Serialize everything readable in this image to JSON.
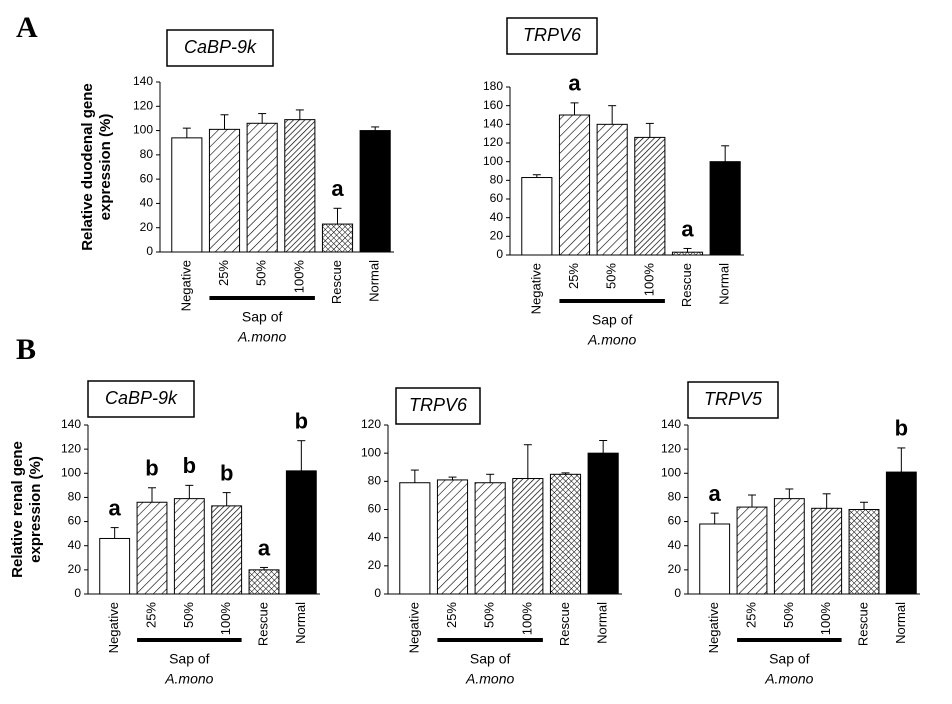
{
  "panel_labels": [
    "A",
    "B"
  ],
  "chart_data": [
    {
      "type": "bar",
      "title": "CaBP-9k",
      "y_label": [
        "Relative duodenal gene",
        "expression (%)"
      ],
      "categories": [
        "Negative",
        "25%",
        "50%",
        "100%",
        "Rescue",
        "Normal"
      ],
      "values": [
        94,
        101,
        106,
        109,
        23,
        100
      ],
      "errors": [
        8,
        12,
        8,
        8,
        13,
        3
      ],
      "annotations": [
        null,
        null,
        null,
        null,
        "a",
        null
      ],
      "group_label": [
        "Sap of",
        "A.mono"
      ],
      "ylim": [
        0,
        140
      ],
      "yticks": [
        0,
        20,
        40,
        60,
        80,
        100,
        120,
        140
      ]
    },
    {
      "type": "bar",
      "title": "TRPV6",
      "categories": [
        "Negative",
        "25%",
        "50%",
        "100%",
        "Rescue",
        "Normal"
      ],
      "values": [
        83,
        150,
        140,
        126,
        3,
        100
      ],
      "errors": [
        3,
        13,
        20,
        15,
        4,
        17
      ],
      "annotations": [
        null,
        "a",
        null,
        null,
        "a",
        null
      ],
      "group_label": [
        "Sap of",
        "A.mono"
      ],
      "ylim": [
        0,
        180
      ],
      "yticks": [
        0,
        20,
        40,
        60,
        80,
        100,
        120,
        140,
        160,
        180
      ]
    },
    {
      "type": "bar",
      "title": "CaBP-9k",
      "y_label": [
        "Relative renal gene",
        "expression (%)"
      ],
      "categories": [
        "Negative",
        "25%",
        "50%",
        "100%",
        "Rescue",
        "Normal"
      ],
      "values": [
        46,
        76,
        79,
        73,
        20,
        102
      ],
      "errors": [
        9,
        12,
        11,
        11,
        2,
        25
      ],
      "annotations": [
        "a",
        "b",
        "b",
        "b",
        "a",
        "b"
      ],
      "group_label": [
        "Sap of",
        "A.mono"
      ],
      "ylim": [
        0,
        140
      ],
      "yticks": [
        0,
        20,
        40,
        60,
        80,
        100,
        120,
        140
      ]
    },
    {
      "type": "bar",
      "title": "TRPV6",
      "categories": [
        "Negative",
        "25%",
        "50%",
        "100%",
        "Rescue",
        "Normal"
      ],
      "values": [
        79,
        81,
        79,
        82,
        85,
        100
      ],
      "errors": [
        9,
        2,
        6,
        24,
        1,
        9
      ],
      "annotations": [
        null,
        null,
        null,
        null,
        null,
        null
      ],
      "group_label": [
        "Sap of",
        "A.mono"
      ],
      "ylim": [
        0,
        120
      ],
      "yticks": [
        0,
        20,
        40,
        60,
        80,
        100,
        120
      ]
    },
    {
      "type": "bar",
      "title": "TRPV5",
      "categories": [
        "Negative",
        "25%",
        "50%",
        "100%",
        "Rescue",
        "Normal"
      ],
      "values": [
        58,
        72,
        79,
        71,
        70,
        101
      ],
      "errors": [
        9,
        10,
        8,
        12,
        6,
        20
      ],
      "annotations": [
        "a",
        null,
        null,
        null,
        null,
        "b"
      ],
      "group_label": [
        "Sap of",
        "A.mono"
      ],
      "ylim": [
        0,
        140
      ],
      "yticks": [
        0,
        20,
        40,
        60,
        80,
        100,
        120,
        140
      ]
    }
  ]
}
